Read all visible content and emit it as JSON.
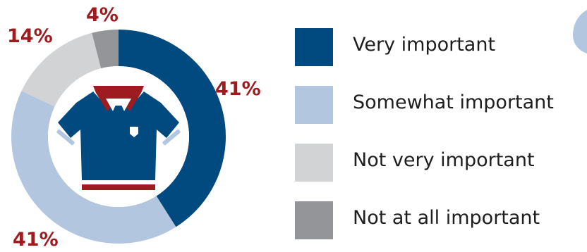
{
  "chart_data": {
    "type": "pie",
    "donut": true,
    "categories": [
      "Very important",
      "Somewhat important",
      "Not very important",
      "Not at all important"
    ],
    "values": [
      41,
      41,
      14,
      4
    ],
    "labels": [
      "41%",
      "41%",
      "14%",
      "4%"
    ],
    "colors": [
      "#004a80",
      "#b3c6df",
      "#d2d3d5",
      "#939598"
    ],
    "legend_position": "right",
    "label_color": "#9e1b20",
    "center_icon": "polo-shirt-icon"
  },
  "legend": {
    "items": [
      {
        "label": "Very important",
        "color": "#004a80"
      },
      {
        "label": "Somewhat important",
        "color": "#b3c6df"
      },
      {
        "label": "Not very important",
        "color": "#d2d3d5"
      },
      {
        "label": "Not at all important",
        "color": "#939598"
      }
    ]
  },
  "colors": {
    "shirt": "#004a80",
    "collar": "#9e1b20",
    "accent": "#b3c6df"
  }
}
